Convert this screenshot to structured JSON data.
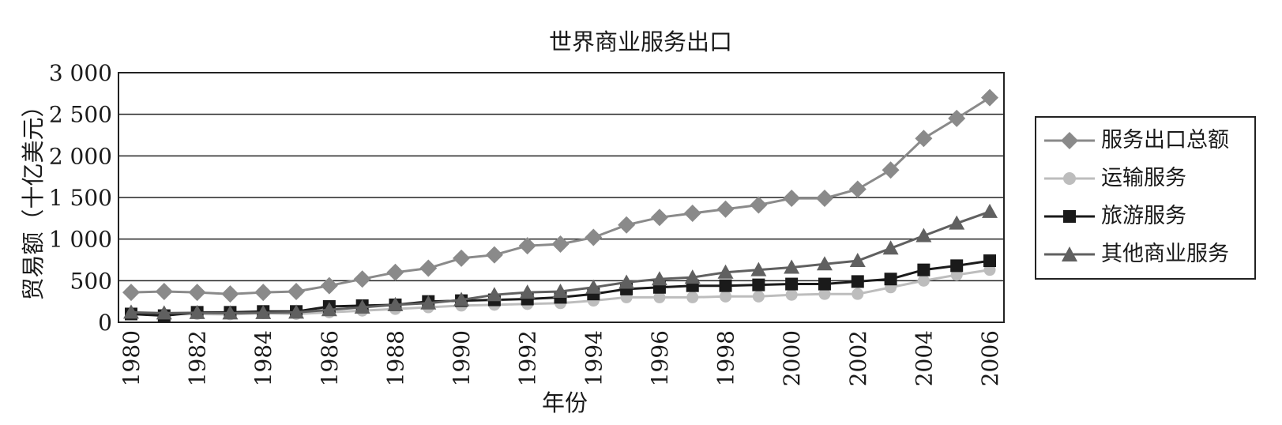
{
  "chart_data": {
    "type": "line",
    "title": "世界商业服务出口",
    "xlabel": "年份",
    "ylabel": "贸易额（十亿美元）",
    "ylim": [
      0,
      3000
    ],
    "yticks": [
      0,
      500,
      1000,
      1500,
      2000,
      2500,
      3000
    ],
    "ytick_labels": [
      "0",
      "500",
      "1 000",
      "1 500",
      "2 000",
      "2 500",
      "3 000"
    ],
    "x": [
      1980,
      1981,
      1982,
      1983,
      1984,
      1985,
      1986,
      1987,
      1988,
      1989,
      1990,
      1991,
      1992,
      1993,
      1994,
      1995,
      1996,
      1997,
      1998,
      1999,
      2000,
      2001,
      2002,
      2003,
      2004,
      2005,
      2006
    ],
    "xtick_labels": [
      "1980",
      "1982",
      "1984",
      "1986",
      "1988",
      "1990",
      "1992",
      "1994",
      "1996",
      "1998",
      "2000",
      "2002",
      "2004",
      "2006"
    ],
    "grid": true,
    "legend_position": "right",
    "series": [
      {
        "name": "服务出口总额",
        "marker": "diamond",
        "color": "#8a8a8a",
        "values": [
          360,
          370,
          360,
          340,
          360,
          370,
          440,
          520,
          600,
          650,
          770,
          810,
          920,
          940,
          1020,
          1170,
          1260,
          1310,
          1360,
          1410,
          1490,
          1490,
          1600,
          1830,
          2210,
          2450,
          2700
        ]
      },
      {
        "name": "运输服务",
        "marker": "circle",
        "color": "#bdbdbd",
        "values": [
          100,
          95,
          100,
          95,
          110,
          100,
          120,
          140,
          160,
          180,
          200,
          210,
          220,
          230,
          260,
          300,
          300,
          300,
          310,
          310,
          330,
          340,
          340,
          420,
          500,
          570,
          630
        ]
      },
      {
        "name": "旅游服务",
        "marker": "square",
        "color": "#1a1a1a",
        "values": [
          100,
          80,
          120,
          120,
          130,
          130,
          190,
          200,
          210,
          250,
          260,
          270,
          280,
          300,
          340,
          400,
          420,
          440,
          440,
          450,
          460,
          460,
          490,
          520,
          630,
          680,
          740
        ]
      },
      {
        "name": "其他商业服务",
        "marker": "triangle",
        "color": "#606060",
        "values": [
          120,
          110,
          115,
          110,
          115,
          120,
          150,
          180,
          210,
          230,
          270,
          330,
          360,
          370,
          420,
          480,
          520,
          540,
          600,
          630,
          660,
          700,
          740,
          890,
          1040,
          1190,
          1330
        ]
      }
    ]
  }
}
